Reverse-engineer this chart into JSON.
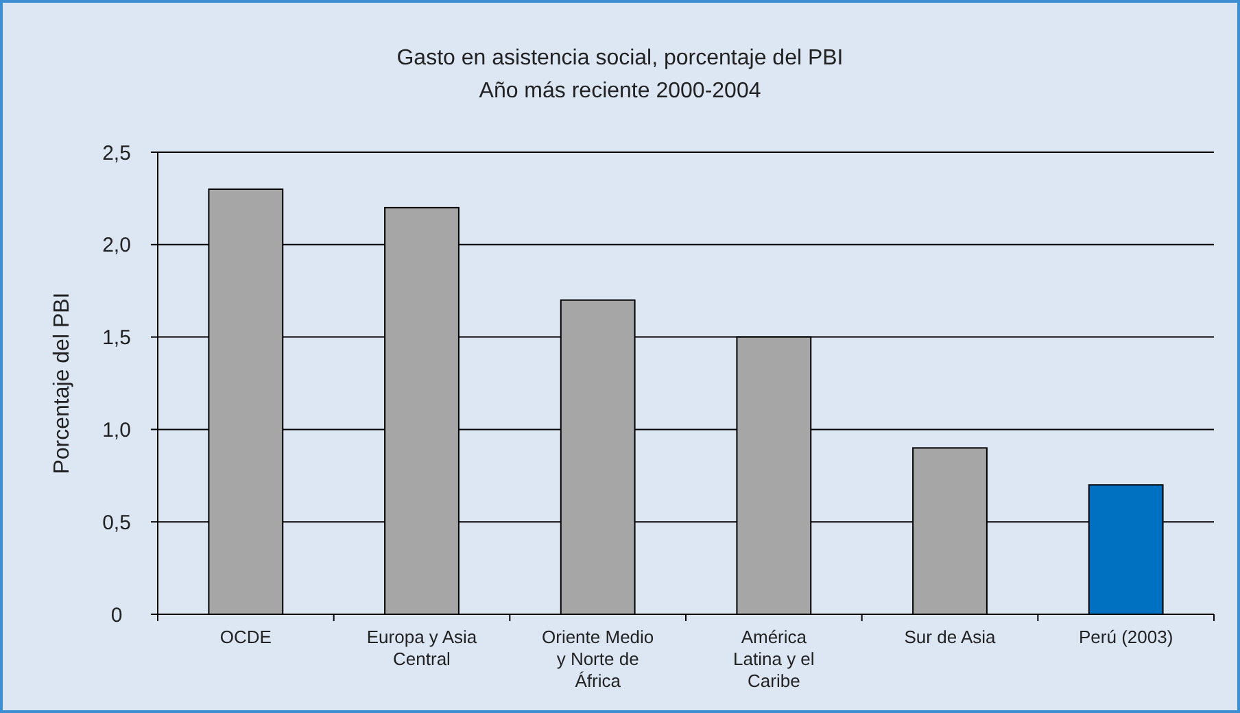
{
  "chart_data": {
    "type": "bar",
    "title": "Gasto en asistencia social, porcentaje del PBI",
    "subtitle": "Año más reciente 2000-2004",
    "ylabel": "Porcentaje del PBI",
    "categories": [
      "OCDE",
      "Europa y Asia Central",
      "Oriente Medio y Norte de África",
      "América Latina y el Caribe",
      "Sur de Asia",
      "Perú (2003)"
    ],
    "values": [
      2.3,
      2.2,
      1.7,
      1.5,
      0.9,
      0.7
    ],
    "colors": [
      "#a6a6a6",
      "#a6a6a6",
      "#a6a6a6",
      "#a6a6a6",
      "#a6a6a6",
      "#0070c0"
    ],
    "ylim": [
      0,
      2.5
    ],
    "yticks": [
      0,
      {
        "value": 0.5,
        "label": "0,5"
      },
      {
        "value": 1,
        "label": "1,0"
      },
      {
        "value": 1.5,
        "label": "1,5"
      },
      {
        "value": 2,
        "label": "2,0"
      },
      {
        "value": 2.5,
        "label": "2,5"
      }
    ],
    "grid": "y"
  }
}
